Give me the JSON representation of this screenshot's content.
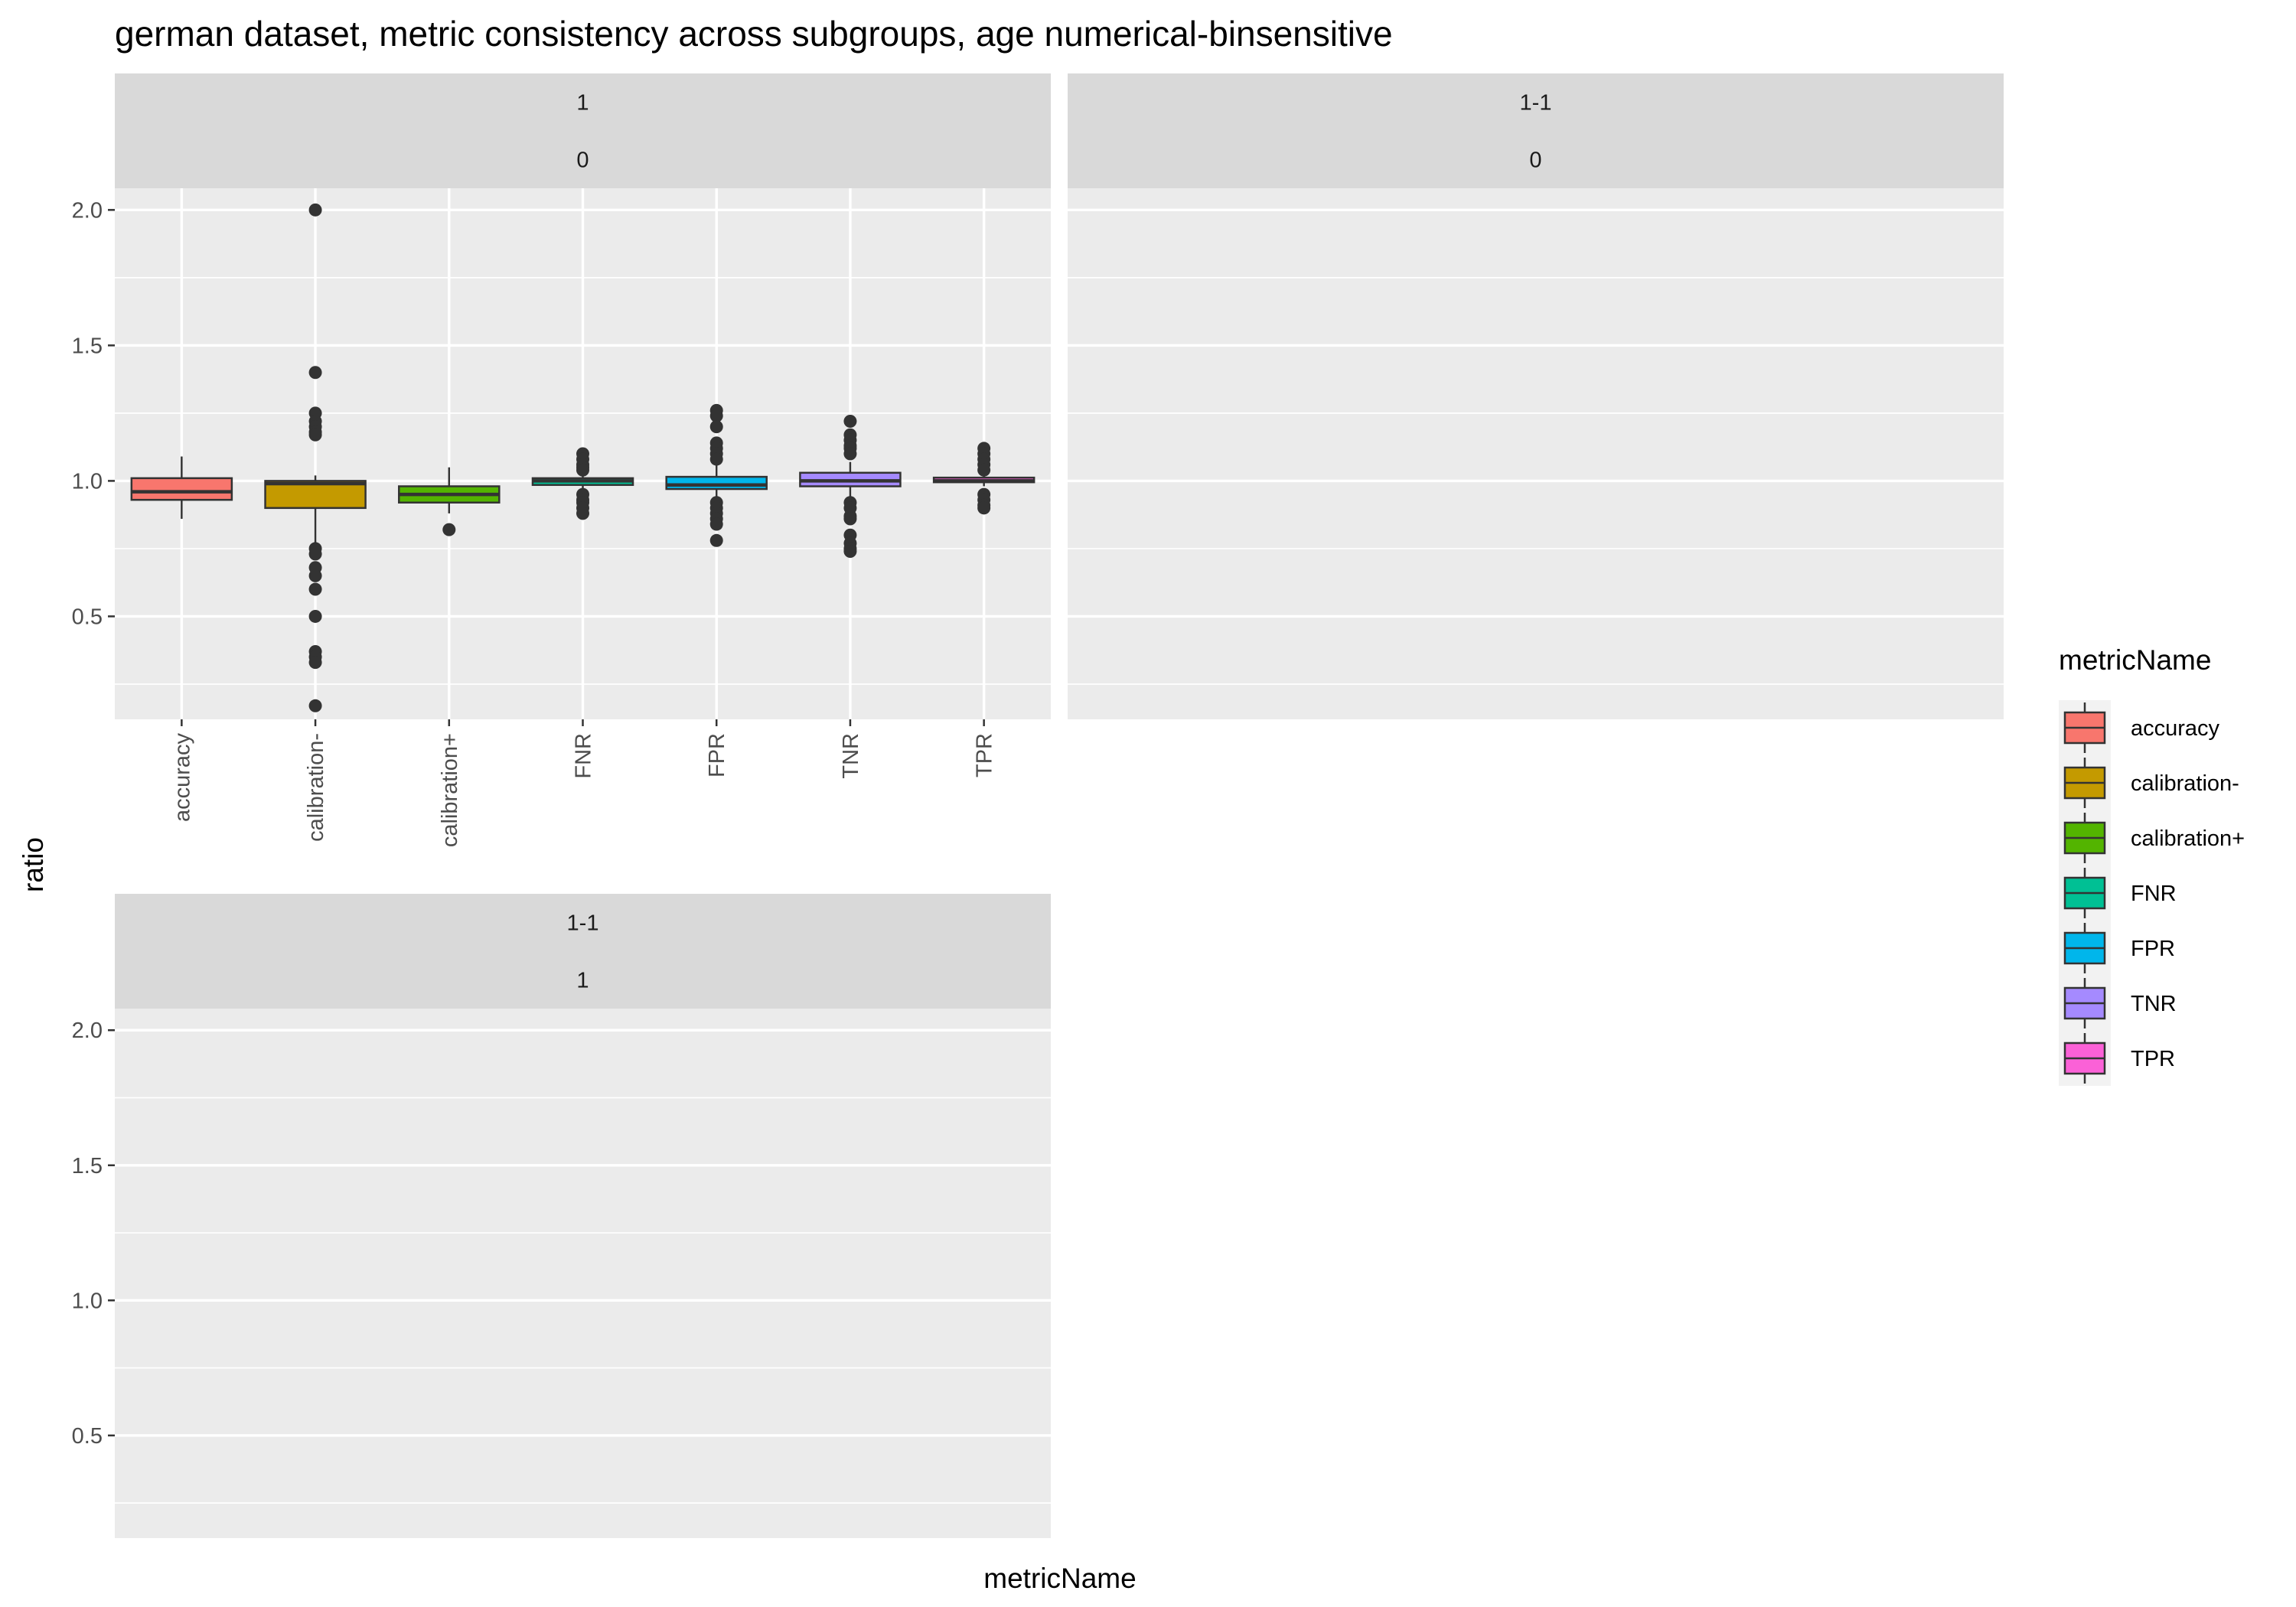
{
  "chart_data": {
    "type": "box",
    "title": "german dataset, metric consistency across subgroups, age numerical-binsensitive",
    "xlabel": "metricName",
    "ylabel": "ratio",
    "ylim": [
      0.12,
      2.08
    ],
    "yticks": [
      0.5,
      1.0,
      1.5,
      2.0
    ],
    "ytick_labels": [
      "0.5",
      "1.0",
      "1.5",
      "2.0"
    ],
    "categories": [
      "accuracy",
      "calibration-",
      "calibration+",
      "FNR",
      "FPR",
      "TNR",
      "TPR"
    ],
    "colors": [
      "#F8766D",
      "#C49A00",
      "#53B400",
      "#00C094",
      "#00B6EB",
      "#A58AFF",
      "#FB61D7"
    ],
    "legend": {
      "title": "metricName",
      "position": "right",
      "entries": [
        "accuracy",
        "calibration-",
        "calibration+",
        "FNR",
        "FPR",
        "TNR",
        "TPR"
      ]
    },
    "panels": [
      {
        "strip": [
          "1",
          "0"
        ],
        "boxes": [
          {
            "category": "accuracy",
            "q1": 0.93,
            "median": 0.96,
            "q3": 1.01,
            "lower": 0.86,
            "upper": 1.09,
            "outliers": []
          },
          {
            "category": "calibration-",
            "q1": 0.9,
            "median": 0.99,
            "q3": 1.0,
            "lower": 0.77,
            "upper": 1.02,
            "outliers": [
              2.0,
              1.4,
              1.25,
              1.22,
              1.2,
              1.18,
              1.17,
              0.75,
              0.73,
              0.68,
              0.65,
              0.6,
              0.5,
              0.37,
              0.35,
              0.33,
              0.17
            ]
          },
          {
            "category": "calibration+",
            "q1": 0.92,
            "median": 0.95,
            "q3": 0.98,
            "lower": 0.88,
            "upper": 1.05,
            "outliers": [
              0.82
            ]
          },
          {
            "category": "FNR",
            "q1": 0.985,
            "median": 1.0,
            "q3": 1.01,
            "lower": 0.97,
            "upper": 1.03,
            "outliers": [
              1.1,
              1.08,
              1.06,
              1.05,
              1.04,
              0.95,
              0.93,
              0.92,
              0.9,
              0.88
            ]
          },
          {
            "category": "FPR",
            "q1": 0.97,
            "median": 0.985,
            "q3": 1.015,
            "lower": 0.93,
            "upper": 1.06,
            "outliers": [
              1.26,
              1.24,
              1.2,
              1.14,
              1.12,
              1.1,
              1.08,
              0.92,
              0.9,
              0.88,
              0.86,
              0.84,
              0.78
            ]
          },
          {
            "category": "TNR",
            "q1": 0.98,
            "median": 1.0,
            "q3": 1.03,
            "lower": 0.94,
            "upper": 1.07,
            "outliers": [
              1.22,
              1.17,
              1.15,
              1.13,
              1.12,
              1.1,
              0.92,
              0.9,
              0.87,
              0.86,
              0.8,
              0.77,
              0.75,
              0.74
            ]
          },
          {
            "category": "TPR",
            "q1": 0.995,
            "median": 1.0,
            "q3": 1.012,
            "lower": 0.98,
            "upper": 1.03,
            "outliers": [
              1.12,
              1.1,
              1.08,
              1.06,
              1.04,
              0.95,
              0.93,
              0.91,
              0.9
            ]
          }
        ]
      },
      {
        "strip": [
          "1-1",
          "0"
        ],
        "boxes": []
      },
      {
        "strip": [
          "1-1",
          "1"
        ],
        "boxes": []
      }
    ]
  }
}
